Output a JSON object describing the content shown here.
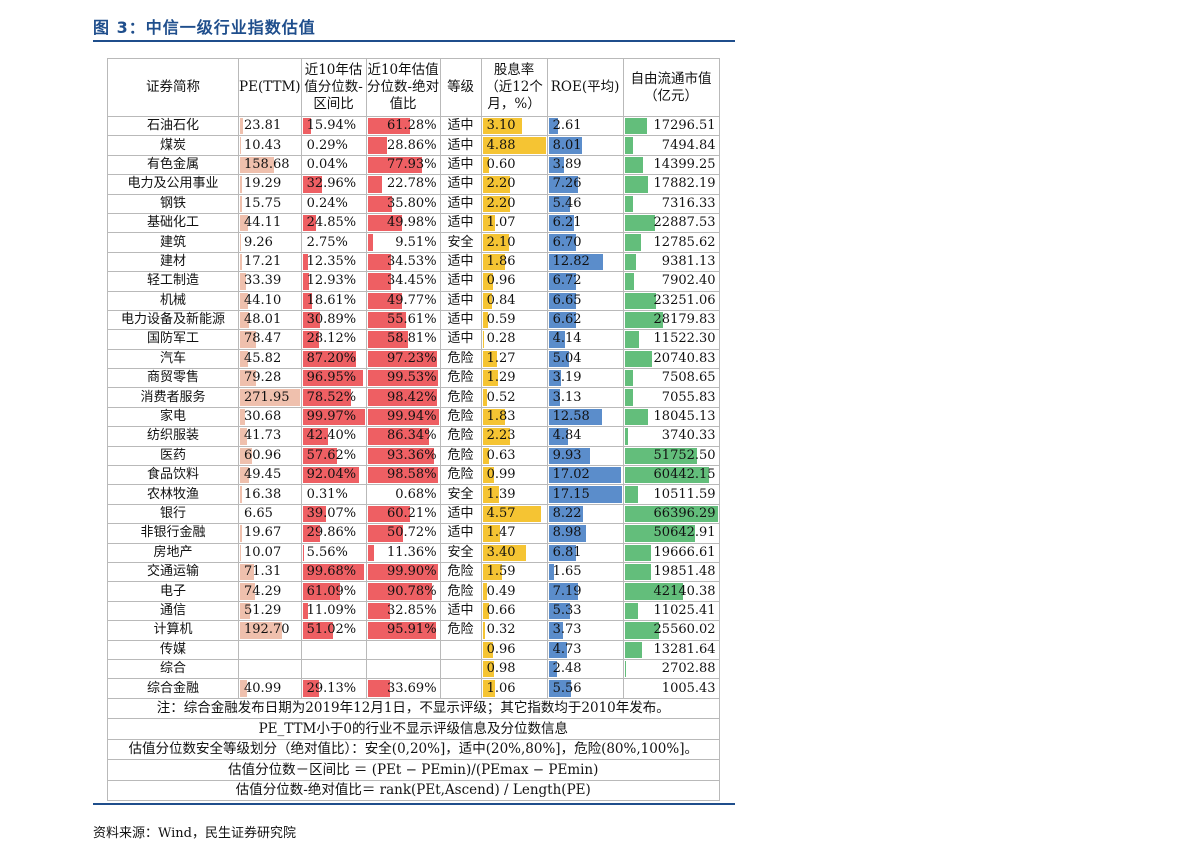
{
  "title": "图 3：中信一级行业指数估值",
  "source": "资料来源：Wind，民生证券研究院",
  "headers": {
    "name": "证券简称",
    "pe": "PE(TTM)",
    "range_pct": "近10年估值分位数-区间比",
    "abs_pct": "近10年估值分位数-绝对值比",
    "level": "等级",
    "div": "股息率（近12个月，%）",
    "roe": "ROE(平均)",
    "mcap": "自由流通市值（亿元）"
  },
  "rows": [
    {
      "name": "石油石化",
      "pe": "23.81",
      "r1": "15.94%",
      "r2": "61.28%",
      "lvl": "适中",
      "dv": "3.10",
      "roe": "2.61",
      "mc": "17296.51"
    },
    {
      "name": "煤炭",
      "pe": "10.43",
      "r1": "0.29%",
      "r2": "28.86%",
      "lvl": "适中",
      "dv": "4.88",
      "roe": "8.01",
      "mc": "7494.84"
    },
    {
      "name": "有色金属",
      "pe": "158.68",
      "r1": "0.04%",
      "r2": "77.93%",
      "lvl": "适中",
      "dv": "0.60",
      "roe": "3.89",
      "mc": "14399.25"
    },
    {
      "name": "电力及公用事业",
      "pe": "19.29",
      "r1": "32.96%",
      "r2": "22.78%",
      "lvl": "适中",
      "dv": "2.20",
      "roe": "7.26",
      "mc": "17882.19"
    },
    {
      "name": "钢铁",
      "pe": "15.75",
      "r1": "0.24%",
      "r2": "35.80%",
      "lvl": "适中",
      "dv": "2.20",
      "roe": "5.46",
      "mc": "7316.33"
    },
    {
      "name": "基础化工",
      "pe": "44.11",
      "r1": "24.85%",
      "r2": "49.98%",
      "lvl": "适中",
      "dv": "1.07",
      "roe": "6.21",
      "mc": "22887.53"
    },
    {
      "name": "建筑",
      "pe": "9.26",
      "r1": "2.75%",
      "r2": "9.51%",
      "lvl": "安全",
      "dv": "2.10",
      "roe": "6.70",
      "mc": "12785.62"
    },
    {
      "name": "建材",
      "pe": "17.21",
      "r1": "12.35%",
      "r2": "34.53%",
      "lvl": "适中",
      "dv": "1.86",
      "roe": "12.82",
      "mc": "9381.13"
    },
    {
      "name": "轻工制造",
      "pe": "33.39",
      "r1": "12.93%",
      "r2": "34.45%",
      "lvl": "适中",
      "dv": "0.96",
      "roe": "6.72",
      "mc": "7902.40"
    },
    {
      "name": "机械",
      "pe": "44.10",
      "r1": "18.61%",
      "r2": "49.77%",
      "lvl": "适中",
      "dv": "0.84",
      "roe": "6.65",
      "mc": "23251.06"
    },
    {
      "name": "电力设备及新能源",
      "pe": "48.01",
      "r1": "30.89%",
      "r2": "55.61%",
      "lvl": "适中",
      "dv": "0.59",
      "roe": "6.62",
      "mc": "28179.83"
    },
    {
      "name": "国防军工",
      "pe": "78.47",
      "r1": "28.12%",
      "r2": "58.81%",
      "lvl": "适中",
      "dv": "0.28",
      "roe": "4.14",
      "mc": "11522.30"
    },
    {
      "name": "汽车",
      "pe": "45.82",
      "r1": "87.20%",
      "r2": "97.23%",
      "lvl": "危险",
      "dv": "1.27",
      "roe": "5.04",
      "mc": "20740.83"
    },
    {
      "name": "商贸零售",
      "pe": "79.28",
      "r1": "96.95%",
      "r2": "99.53%",
      "lvl": "危险",
      "dv": "1.29",
      "roe": "3.19",
      "mc": "7508.65"
    },
    {
      "name": "消费者服务",
      "pe": "271.95",
      "r1": "78.52%",
      "r2": "98.42%",
      "lvl": "危险",
      "dv": "0.52",
      "roe": "3.13",
      "mc": "7055.83"
    },
    {
      "name": "家电",
      "pe": "30.68",
      "r1": "99.97%",
      "r2": "99.94%",
      "lvl": "危险",
      "dv": "1.83",
      "roe": "12.58",
      "mc": "18045.13"
    },
    {
      "name": "纺织服装",
      "pe": "41.73",
      "r1": "42.40%",
      "r2": "86.34%",
      "lvl": "危险",
      "dv": "2.23",
      "roe": "4.84",
      "mc": "3740.33"
    },
    {
      "name": "医药",
      "pe": "60.96",
      "r1": "57.62%",
      "r2": "93.36%",
      "lvl": "危险",
      "dv": "0.63",
      "roe": "9.93",
      "mc": "51752.50"
    },
    {
      "name": "食品饮料",
      "pe": "49.45",
      "r1": "92.04%",
      "r2": "98.58%",
      "lvl": "危险",
      "dv": "0.99",
      "roe": "17.02",
      "mc": "60442.15"
    },
    {
      "name": "农林牧渔",
      "pe": "16.38",
      "r1": "0.31%",
      "r2": "0.68%",
      "lvl": "安全",
      "dv": "1.39",
      "roe": "17.15",
      "mc": "10511.59"
    },
    {
      "name": "银行",
      "pe": "6.65",
      "r1": "39.07%",
      "r2": "60.21%",
      "lvl": "适中",
      "dv": "4.57",
      "roe": "8.22",
      "mc": "66396.29"
    },
    {
      "name": "非银行金融",
      "pe": "19.67",
      "r1": "29.86%",
      "r2": "50.72%",
      "lvl": "适中",
      "dv": "1.47",
      "roe": "8.98",
      "mc": "50642.91"
    },
    {
      "name": "房地产",
      "pe": "10.07",
      "r1": "5.56%",
      "r2": "11.36%",
      "lvl": "安全",
      "dv": "3.40",
      "roe": "6.81",
      "mc": "19666.61"
    },
    {
      "name": "交通运输",
      "pe": "71.31",
      "r1": "99.68%",
      "r2": "99.90%",
      "lvl": "危险",
      "dv": "1.59",
      "roe": "1.65",
      "mc": "19851.48"
    },
    {
      "name": "电子",
      "pe": "74.29",
      "r1": "61.09%",
      "r2": "90.78%",
      "lvl": "危险",
      "dv": "0.49",
      "roe": "7.19",
      "mc": "42140.38"
    },
    {
      "name": "通信",
      "pe": "51.29",
      "r1": "11.09%",
      "r2": "32.85%",
      "lvl": "适中",
      "dv": "0.66",
      "roe": "5.33",
      "mc": "11025.41"
    },
    {
      "name": "计算机",
      "pe": "192.70",
      "r1": "51.02%",
      "r2": "95.91%",
      "lvl": "危险",
      "dv": "0.32",
      "roe": "3.73",
      "mc": "25560.02"
    },
    {
      "name": "传媒",
      "pe": "",
      "r1": "",
      "r2": "",
      "lvl": "",
      "dv": "0.96",
      "roe": "4.73",
      "mc": "13281.64"
    },
    {
      "name": "综合",
      "pe": "",
      "r1": "",
      "r2": "",
      "lvl": "",
      "dv": "0.98",
      "roe": "2.48",
      "mc": "2702.88"
    },
    {
      "name": "综合金融",
      "pe": "40.99",
      "r1": "29.13%",
      "r2": "33.69%",
      "lvl": "",
      "dv": "1.06",
      "roe": "5.56",
      "mc": "1005.43"
    }
  ],
  "notes": [
    "注：综合金融发布日期为2019年12月1日，不显示评级；其它指数均于2010年发布。",
    "PE_TTM小于0的行业不显示评级信息及分位数信息",
    "估值分位数安全等级划分（绝对值比）：安全(0,20%]，适中(20%,80%]，危险(80%,100%]。",
    "估值分位数－区间比 ＝ (PEt − PEmin)/(PEmax − PEmin)",
    "估值分位数-绝对值比＝ rank(PEt,Ascend) / Length(PE)"
  ],
  "colors": {
    "pe_bar": "#efc0ad",
    "pct_bar": "#ee5f63",
    "div_bar": "#f5c433",
    "roe_bar": "#5b8dcb",
    "mcap_bar": "#63be7b",
    "title": "#1f4e8c"
  }
}
